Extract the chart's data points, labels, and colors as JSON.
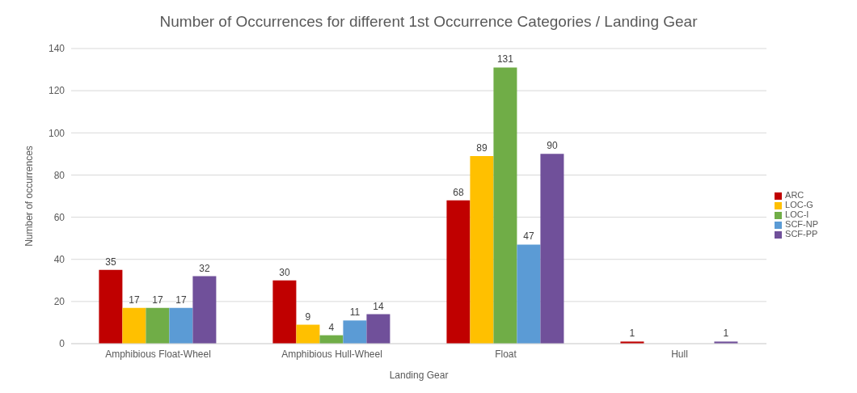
{
  "chart_data": {
    "type": "bar",
    "title": "Number of Occurrences for different 1st Occurrence Categories / Landing Gear",
    "xlabel": "Landing Gear",
    "ylabel": "Number of occurrences",
    "categories": [
      "Amphibious Float-Wheel",
      "Amphibious Hull-Wheel",
      "Float",
      "Hull"
    ],
    "series": [
      {
        "name": "ARC",
        "color": "#c00000",
        "values": [
          35,
          30,
          68,
          1
        ]
      },
      {
        "name": "LOC-G",
        "color": "#ffc000",
        "values": [
          17,
          9,
          89,
          null
        ]
      },
      {
        "name": "LOC-I",
        "color": "#70ad47",
        "values": [
          17,
          4,
          131,
          null
        ]
      },
      {
        "name": "SCF-NP",
        "color": "#5b9bd5",
        "values": [
          17,
          11,
          47,
          null
        ]
      },
      {
        "name": "SCF-PP",
        "color": "#70509a",
        "values": [
          32,
          14,
          90,
          1
        ]
      }
    ],
    "ylim": [
      0,
      140
    ],
    "yticks": [
      0,
      20,
      40,
      60,
      80,
      100,
      120,
      140
    ],
    "grid": "y",
    "legend": "right",
    "data_labels": true
  }
}
